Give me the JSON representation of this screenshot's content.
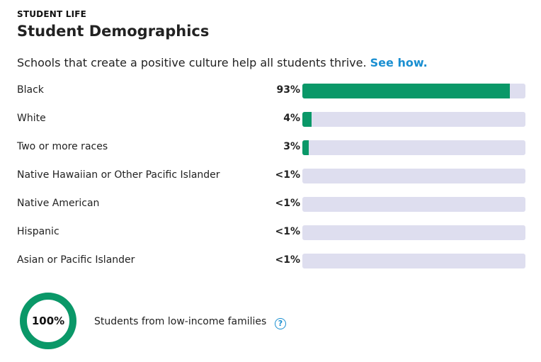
{
  "header": {
    "eyebrow": "STUDENT LIFE",
    "title": "Student Demographics"
  },
  "intro": {
    "text": "Schools that create a positive culture help all students thrive.",
    "link": "See how."
  },
  "demographics": [
    {
      "label": "Black",
      "display": "93%",
      "value": 93
    },
    {
      "label": "White",
      "display": "4%",
      "value": 4
    },
    {
      "label": "Two or more races",
      "display": "3%",
      "value": 3
    },
    {
      "label": "Native Hawaiian or Other Pacific Islander",
      "display": "<1%",
      "value": 0
    },
    {
      "label": "Native American",
      "display": "<1%",
      "value": 0
    },
    {
      "label": "Hispanic",
      "display": "<1%",
      "value": 0
    },
    {
      "label": "Asian or Pacific Islander",
      "display": "<1%",
      "value": 0
    }
  ],
  "low_income": {
    "display": "100%",
    "value": 100,
    "label": "Students from low-income families",
    "help_icon": "question-mark-icon"
  },
  "colors": {
    "accent_green": "#0a9868",
    "track": "#dedeef",
    "link_blue": "#1a8fd1"
  }
}
